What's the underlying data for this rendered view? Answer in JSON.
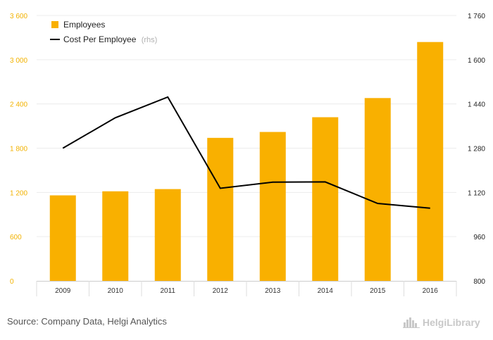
{
  "chart_data": {
    "type": "bar+line",
    "categories": [
      "2009",
      "2010",
      "2011",
      "2012",
      "2013",
      "2014",
      "2015",
      "2016"
    ],
    "series": [
      {
        "name": "Employees",
        "type": "bar",
        "axis": "left",
        "color": "#f9b000",
        "values": [
          1160,
          1215,
          1245,
          1940,
          2020,
          2220,
          2480,
          3240
        ]
      },
      {
        "name": "Cost Per Employee",
        "name_suffix": "(rhs)",
        "type": "line",
        "axis": "right",
        "color": "#000000",
        "values": [
          1280,
          1390,
          1465,
          1135,
          1157,
          1158,
          1080,
          1063
        ]
      }
    ],
    "y_left": {
      "ylim": [
        0,
        3600
      ],
      "ticks": [
        0,
        600,
        1200,
        1800,
        2400,
        3000,
        3600
      ],
      "tick_labels": [
        "0",
        "600",
        "1 200",
        "1 800",
        "2 400",
        "3 000",
        "3 600"
      ]
    },
    "y_right": {
      "ylim": [
        800,
        1760
      ],
      "ticks": [
        800,
        960,
        1120,
        1280,
        1440,
        1600,
        1760
      ],
      "tick_labels": [
        "800",
        "960",
        "1 120",
        "1 280",
        "1 440",
        "1 600",
        "1 760"
      ]
    },
    "legend_position": "top-left",
    "grid": "horizontal"
  },
  "footer": {
    "source": "Source: Company Data, Helgi Analytics",
    "logo_text": "HelgiLibrary",
    "logo_icon": "city-skyline-icon"
  }
}
